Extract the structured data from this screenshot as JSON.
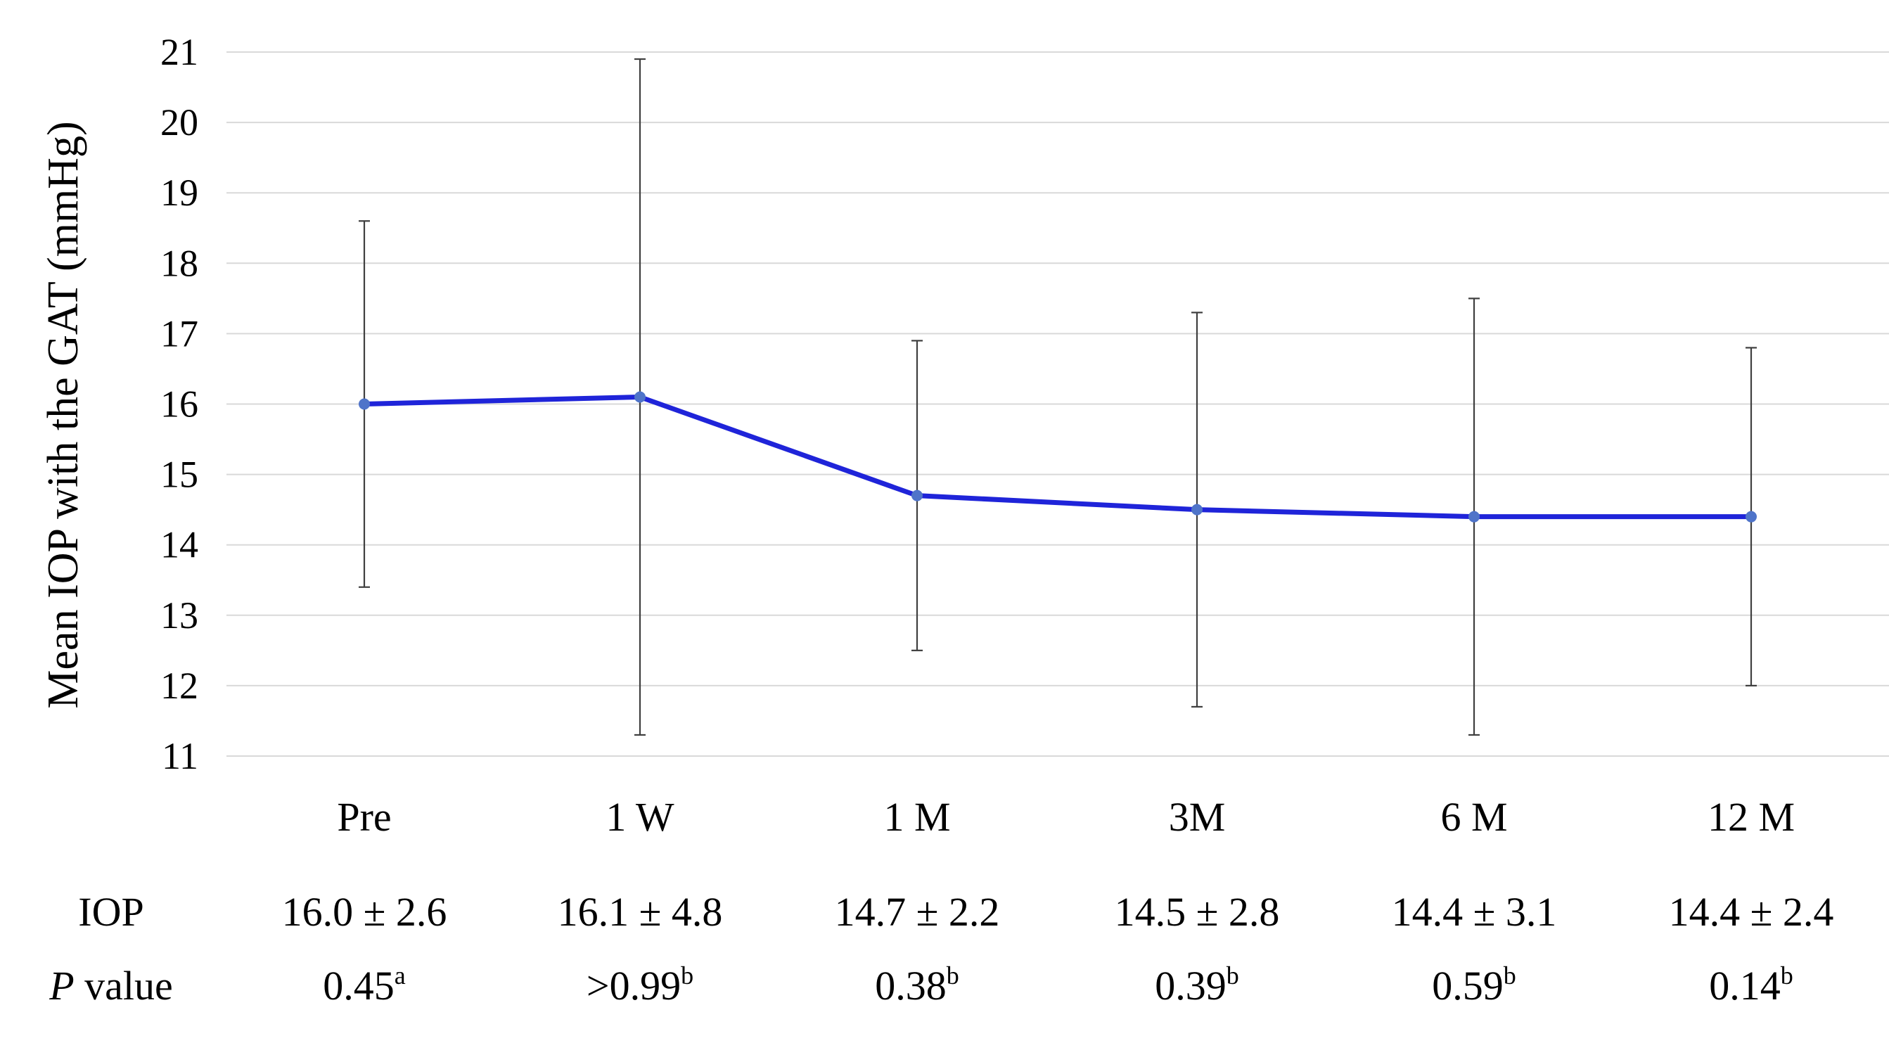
{
  "chart_data": {
    "type": "line",
    "ylabel": "Mean IOP with the GAT (mmHg)",
    "ylim": [
      11,
      21
    ],
    "yticks": [
      11,
      12,
      13,
      14,
      15,
      16,
      17,
      18,
      19,
      20,
      21
    ],
    "grid": true,
    "categories": [
      "Pre",
      "1 W",
      "1 M",
      "3M",
      "6 M",
      "12 M"
    ],
    "series": [
      {
        "values": [
          16.0,
          16.1,
          14.7,
          14.5,
          14.4,
          14.4
        ],
        "error": [
          2.6,
          4.8,
          2.2,
          2.8,
          3.1,
          2.4
        ],
        "color": "#1f24d9",
        "marker_color": "#4f74c9"
      }
    ],
    "table": {
      "rows": [
        {
          "label": "IOP",
          "cells": [
            "16.0 ± 2.6",
            "16.1 ± 4.8",
            "14.7 ± 2.2",
            "14.5 ± 2.8",
            "14.4 ± 3.1",
            "14.4 ± 2.4"
          ]
        },
        {
          "label_italic": "P",
          "label_rest": " value",
          "cells": [
            {
              "value": "0.45",
              "sup": "a"
            },
            {
              "value": ">0.99",
              "sup": "b"
            },
            {
              "value": "0.38",
              "sup": "b"
            },
            {
              "value": "0.39",
              "sup": "b"
            },
            {
              "value": "0.59",
              "sup": "b"
            },
            {
              "value": "0.14",
              "sup": "b"
            }
          ]
        }
      ]
    }
  }
}
